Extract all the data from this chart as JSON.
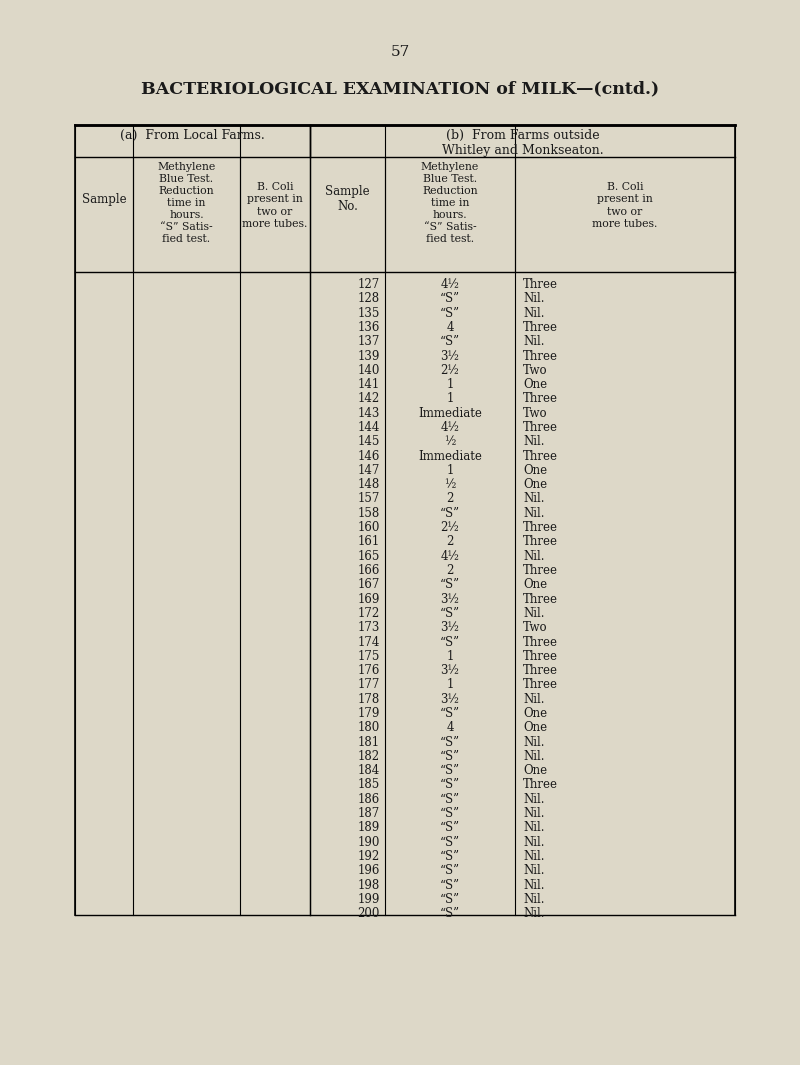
{
  "page_number": "57",
  "title": "BACTERIOLOGICAL EXAMINATION of MILK—(cntd.)",
  "bg_color": "#ddd8c8",
  "section_a_header": "(a)  From Local Farms.",
  "section_b_header": "(b)  From Farms outside\nWhitley and Monkseaton.",
  "rows_b": [
    [
      "127",
      "4½",
      "Three"
    ],
    [
      "128",
      "“S”",
      "Nil."
    ],
    [
      "135",
      "“S”",
      "Nil."
    ],
    [
      "136",
      "4",
      "Three"
    ],
    [
      "137",
      "“S”",
      "Nil."
    ],
    [
      "139",
      "3½",
      "Three"
    ],
    [
      "140",
      "2½",
      "Two"
    ],
    [
      "141",
      "1",
      "One"
    ],
    [
      "142",
      "1",
      "Three"
    ],
    [
      "143",
      "Immediate",
      "Two"
    ],
    [
      "144",
      "4½",
      "Three"
    ],
    [
      "145",
      "½",
      "Nil."
    ],
    [
      "146",
      "Immediate",
      "Three"
    ],
    [
      "147",
      "1",
      "One"
    ],
    [
      "148",
      "½",
      "One"
    ],
    [
      "157",
      "2",
      "Nil."
    ],
    [
      "158",
      "“S”",
      "Nil."
    ],
    [
      "160",
      "2½",
      "Three"
    ],
    [
      "161",
      "2",
      "Three"
    ],
    [
      "165",
      "4½",
      "Nil."
    ],
    [
      "166",
      "2",
      "Three"
    ],
    [
      "167",
      "“S”",
      "One"
    ],
    [
      "169",
      "3½",
      "Three"
    ],
    [
      "172",
      "“S”",
      "Nil."
    ],
    [
      "173",
      "3½",
      "Two"
    ],
    [
      "174",
      "“S”",
      "Three"
    ],
    [
      "175",
      "1",
      "Three"
    ],
    [
      "176",
      "3½",
      "Three"
    ],
    [
      "177",
      "1",
      "Three"
    ],
    [
      "178",
      "3½",
      "Nil."
    ],
    [
      "179",
      "“S”",
      "One"
    ],
    [
      "180",
      "4",
      "One"
    ],
    [
      "181",
      "“S”",
      "Nil."
    ],
    [
      "182",
      "“S”",
      "Nil."
    ],
    [
      "184",
      "“S”",
      "One"
    ],
    [
      "185",
      "“S”",
      "Three"
    ],
    [
      "186",
      "“S”",
      "Nil."
    ],
    [
      "187",
      "“S”",
      "Nil."
    ],
    [
      "189",
      "“S”",
      "Nil."
    ],
    [
      "190",
      "“S”",
      "Nil."
    ],
    [
      "192",
      "“S”",
      "Nil."
    ],
    [
      "196",
      "“S”",
      "Nil."
    ],
    [
      "198",
      "“S”",
      "Nil."
    ],
    [
      "199",
      "“S”",
      "Nil."
    ],
    [
      "200",
      "“S”",
      "Nil."
    ]
  ]
}
